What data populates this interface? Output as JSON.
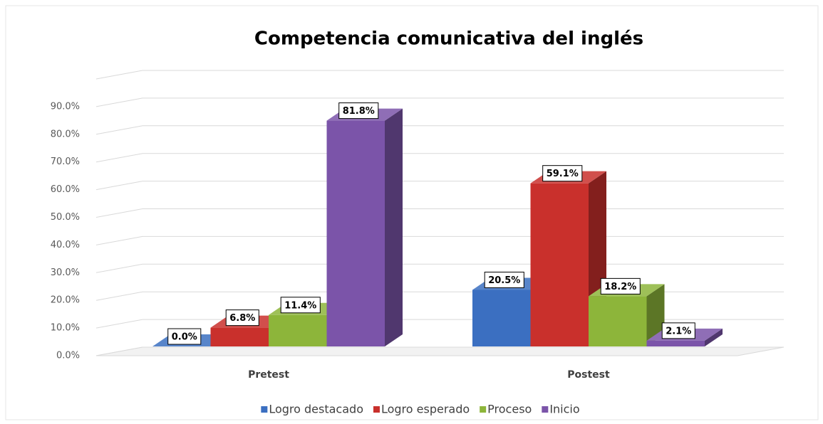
{
  "chart_data": {
    "type": "bar3d",
    "title": "Competencia comunicativa del inglés",
    "categories": [
      "Pretest",
      "Postest"
    ],
    "series": [
      {
        "name": "Logro destacado",
        "color": "#3b6fc1",
        "values": [
          0.0,
          20.5
        ],
        "value_labels": [
          "0.0%",
          "20.5%"
        ]
      },
      {
        "name": "Logro esperado",
        "color": "#c9302c",
        "values": [
          6.8,
          59.1
        ],
        "value_labels": [
          "6.8%",
          "59.1%"
        ]
      },
      {
        "name": "Proceso",
        "color": "#8db53a",
        "values": [
          11.4,
          18.2
        ],
        "value_labels": [
          "11.4%",
          "18.2%"
        ]
      },
      {
        "name": "Inicio",
        "color": "#7b54a9",
        "values": [
          81.8,
          2.1
        ],
        "value_labels": [
          "81.8%",
          "2.1%"
        ]
      }
    ],
    "ylim": [
      0,
      100
    ],
    "yticks": [
      {
        "value": 0,
        "label": "0.0%"
      },
      {
        "value": 10,
        "label": "10.0%"
      },
      {
        "value": 20,
        "label": "20.0%"
      },
      {
        "value": 30,
        "label": "30.0%"
      },
      {
        "value": 40,
        "label": "40.0%"
      },
      {
        "value": 50,
        "label": "50.0%"
      },
      {
        "value": 60,
        "label": "60.0%"
      },
      {
        "value": 70,
        "label": "70.0%"
      },
      {
        "value": 80,
        "label": "80.0%"
      },
      {
        "value": 90,
        "label": "90.0%"
      }
    ],
    "grid": true,
    "legend": "bottom"
  }
}
